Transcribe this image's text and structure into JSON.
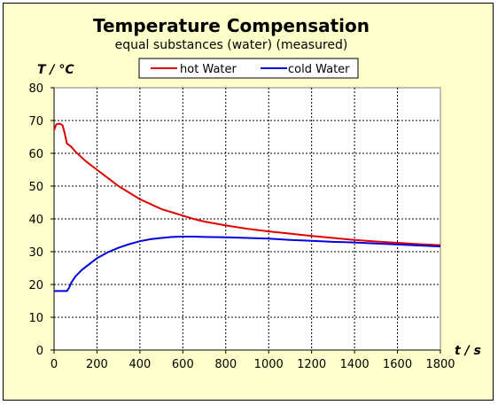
{
  "chart_data": {
    "type": "line",
    "title": "Temperature Compensation",
    "subtitle": "equal substances (water) (measured)",
    "xlabel": "t / s",
    "ylabel": "T / °C",
    "xlim": [
      0,
      1800
    ],
    "ylim": [
      0,
      80
    ],
    "x_ticks": [
      0,
      200,
      400,
      600,
      800,
      1000,
      1200,
      1400,
      1600,
      1800
    ],
    "y_ticks": [
      0,
      10,
      20,
      30,
      40,
      50,
      60,
      70,
      80
    ],
    "grid": true,
    "legend_position": "top",
    "series": [
      {
        "name": "hot Water",
        "color": "#e00000",
        "points": [
          [
            0,
            67
          ],
          [
            10,
            68.8
          ],
          [
            20,
            69
          ],
          [
            30,
            69
          ],
          [
            40,
            68.5
          ],
          [
            50,
            66
          ],
          [
            60,
            63
          ],
          [
            80,
            62
          ],
          [
            100,
            60.5
          ],
          [
            150,
            57.5
          ],
          [
            200,
            55
          ],
          [
            250,
            52.5
          ],
          [
            300,
            50
          ],
          [
            350,
            48
          ],
          [
            400,
            46
          ],
          [
            450,
            44.5
          ],
          [
            500,
            43
          ],
          [
            550,
            42
          ],
          [
            600,
            41
          ],
          [
            650,
            40
          ],
          [
            700,
            39.2
          ],
          [
            800,
            38
          ],
          [
            900,
            37
          ],
          [
            1000,
            36.2
          ],
          [
            1100,
            35.5
          ],
          [
            1200,
            34.8
          ],
          [
            1300,
            34.2
          ],
          [
            1400,
            33.6
          ],
          [
            1500,
            33.1
          ],
          [
            1600,
            32.7
          ],
          [
            1700,
            32.3
          ],
          [
            1800,
            32
          ]
        ]
      },
      {
        "name": "cold Water",
        "color": "#0000e0",
        "points": [
          [
            0,
            18
          ],
          [
            60,
            18
          ],
          [
            70,
            19
          ],
          [
            80,
            20.5
          ],
          [
            100,
            22.5
          ],
          [
            130,
            24.5
          ],
          [
            160,
            26
          ],
          [
            200,
            28
          ],
          [
            250,
            29.8
          ],
          [
            300,
            31.2
          ],
          [
            350,
            32.3
          ],
          [
            400,
            33.2
          ],
          [
            450,
            33.8
          ],
          [
            500,
            34.2
          ],
          [
            550,
            34.5
          ],
          [
            600,
            34.6
          ],
          [
            650,
            34.6
          ],
          [
            700,
            34.5
          ],
          [
            800,
            34.4
          ],
          [
            900,
            34.2
          ],
          [
            1000,
            34
          ],
          [
            1100,
            33.6
          ],
          [
            1200,
            33.3
          ],
          [
            1300,
            33
          ],
          [
            1400,
            32.8
          ],
          [
            1500,
            32.5
          ],
          [
            1600,
            32.2
          ],
          [
            1700,
            31.9
          ],
          [
            1800,
            31.6
          ]
        ]
      }
    ]
  }
}
